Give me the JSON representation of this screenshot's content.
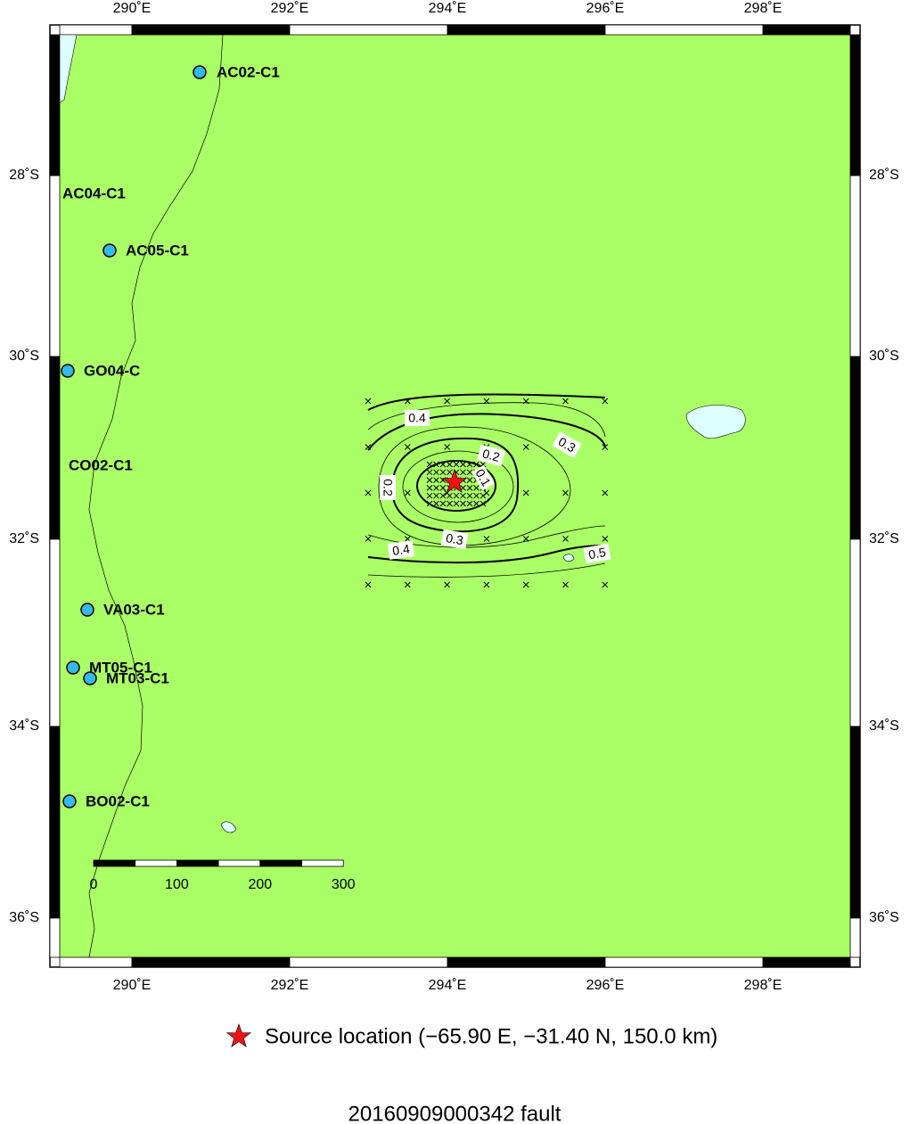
{
  "map": {
    "lon_ticks": [
      "290˚E",
      "292˚E",
      "294˚E",
      "296˚E",
      "298˚E"
    ],
    "lat_ticks": [
      "28˚S",
      "30˚S",
      "32˚S",
      "34˚S",
      "36˚S"
    ],
    "stations": [
      "AC02-C1",
      "AC04-C1",
      "AC05-C1",
      "GO04-C",
      "CO02-C1",
      "VA03-C1",
      "MT05-C1",
      "MT03-C1",
      "BO02-C1"
    ],
    "contour_labels": [
      "0.4",
      "0.3",
      "0.2",
      "0.1",
      "0.2",
      "0.3",
      "0.4",
      "0.5"
    ],
    "scale_bar": [
      "0",
      "100",
      "200",
      "300"
    ],
    "legend": "Source location (−65.90 E, −31.40 N, 150.0 km)",
    "title": "20160909000342 fault"
  }
}
